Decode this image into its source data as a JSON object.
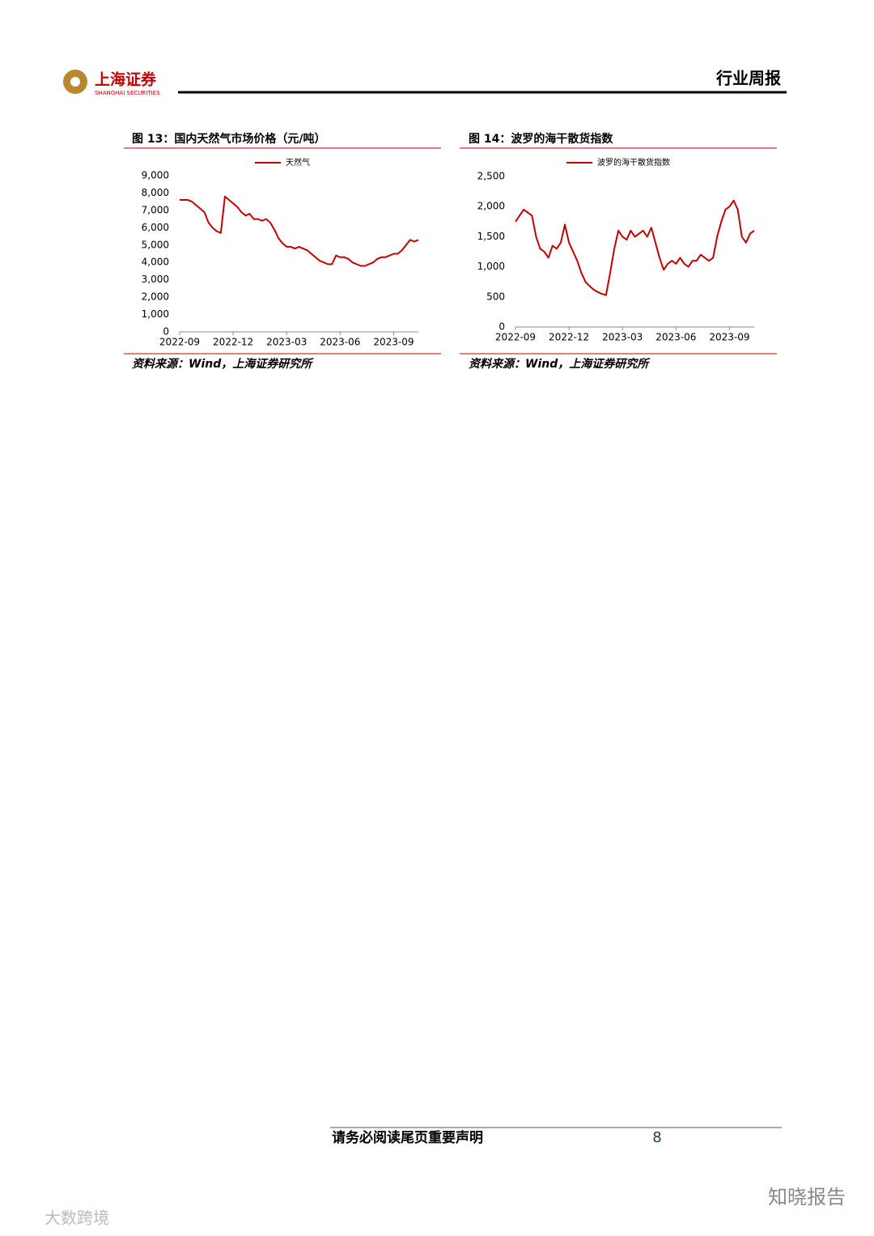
{
  "header": {
    "logo_text": "上海证券",
    "logo_sub": "SHANGHAI SECURITIES",
    "section": "行业周报"
  },
  "chart_data": [
    {
      "type": "line",
      "title": "图 13：国内天然气市场价格（元/吨）",
      "source": "资料来源：Wind，上海证券研究所",
      "categories": [
        "2022-09",
        null,
        null,
        null,
        null,
        null,
        null,
        null,
        null,
        null,
        null,
        null,
        null,
        "2022-12",
        null,
        null,
        null,
        null,
        null,
        null,
        null,
        null,
        null,
        null,
        null,
        null,
        "2023-03",
        null,
        null,
        null,
        null,
        null,
        null,
        null,
        null,
        null,
        null,
        null,
        null,
        "2023-06",
        null,
        null,
        null,
        null,
        null,
        null,
        null,
        null,
        null,
        null,
        null,
        null,
        "2023-09",
        null,
        null,
        null,
        null,
        null,
        null
      ],
      "series": [
        {
          "name": "天然气",
          "color": "#c00000",
          "values": [
            7600,
            7600,
            7600,
            7500,
            7300,
            7100,
            6900,
            6300,
            6000,
            5800,
            5700,
            7800,
            7600,
            7400,
            7200,
            6900,
            6700,
            6800,
            6500,
            6500,
            6400,
            6500,
            6300,
            5900,
            5400,
            5100,
            4900,
            4900,
            4800,
            4900,
            4800,
            4700,
            4500,
            4300,
            4100,
            4000,
            3900,
            3900,
            4400,
            4300,
            4300,
            4200,
            4000,
            3900,
            3800,
            3800,
            3900,
            4000,
            4200,
            4300,
            4300,
            4400,
            4500,
            4500,
            4700,
            5000,
            5300,
            5200,
            5300
          ]
        }
      ],
      "ylim": [
        0,
        9000
      ],
      "yticks": [
        0,
        {
          "value": 1000,
          "label": "1,000"
        },
        {
          "value": 2000,
          "label": "2,000"
        },
        {
          "value": 3000,
          "label": "3,000"
        },
        {
          "value": 4000,
          "label": "4,000"
        },
        {
          "value": 5000,
          "label": "5,000"
        },
        {
          "value": 6000,
          "label": "6,000"
        },
        {
          "value": 7000,
          "label": "7,000"
        },
        {
          "value": 8000,
          "label": "8,000"
        },
        {
          "value": 9000,
          "label": "9,000"
        }
      ],
      "grid": false
    },
    {
      "type": "line",
      "title": "图 14：波罗的海干散货指数",
      "source": "资料来源：Wind，上海证券研究所",
      "categories": [
        "2022-09",
        null,
        null,
        null,
        null,
        null,
        null,
        null,
        null,
        null,
        null,
        null,
        null,
        "2022-12",
        null,
        null,
        null,
        null,
        null,
        null,
        null,
        null,
        null,
        null,
        null,
        null,
        "2023-03",
        null,
        null,
        null,
        null,
        null,
        null,
        null,
        null,
        null,
        null,
        null,
        null,
        "2023-06",
        null,
        null,
        null,
        null,
        null,
        null,
        null,
        null,
        null,
        null,
        null,
        null,
        "2023-09",
        null,
        null,
        null,
        null,
        null,
        null
      ],
      "series": [
        {
          "name": "波罗的海干散货指数",
          "color": "#c00000",
          "values": [
            1750,
            1850,
            1950,
            1900,
            1850,
            1500,
            1300,
            1250,
            1150,
            1350,
            1300,
            1400,
            1700,
            1400,
            1250,
            1100,
            900,
            750,
            680,
            620,
            580,
            550,
            530,
            900,
            1300,
            1600,
            1500,
            1450,
            1600,
            1500,
            1550,
            1600,
            1500,
            1650,
            1400,
            1150,
            950,
            1050,
            1100,
            1050,
            1150,
            1050,
            1000,
            1100,
            1100,
            1200,
            1150,
            1100,
            1150,
            1500,
            1750,
            1950,
            2000,
            2100,
            1950,
            1500,
            1400,
            1550,
            1600
          ]
        }
      ],
      "ylim": [
        0,
        2500
      ],
      "yticks": [
        0,
        500,
        {
          "value": 1000,
          "label": "1,000"
        },
        {
          "value": 1500,
          "label": "1,500"
        },
        {
          "value": 2000,
          "label": "2,000"
        },
        {
          "value": 2500,
          "label": "2,500"
        }
      ],
      "grid": false
    }
  ],
  "footer": {
    "notice": "请务必阅读尾页重要声明",
    "page": 8
  },
  "watermarks": {
    "left": "大数跨境",
    "right": "知晓报告"
  }
}
